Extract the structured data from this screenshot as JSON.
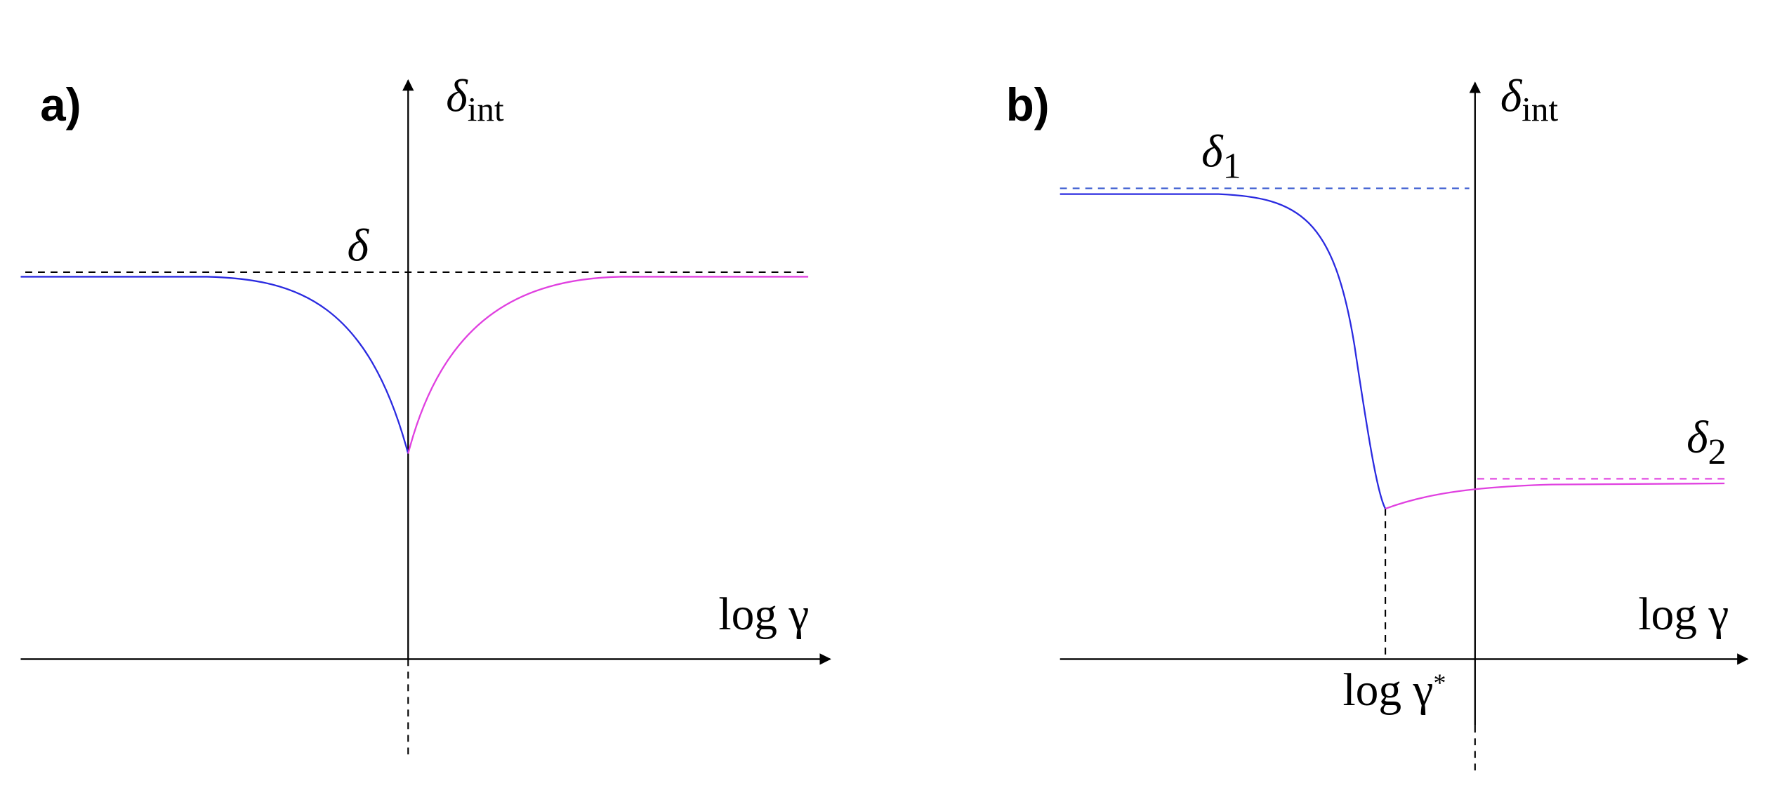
{
  "panels": [
    {
      "label": "a)",
      "y_axis": {
        "symbol": "δ",
        "subscript": "int"
      },
      "x_axis": "log γ",
      "level": "δ"
    },
    {
      "label": "b)",
      "y_axis": {
        "symbol": "δ",
        "subscript": "int"
      },
      "x_axis": "log γ",
      "level_left": {
        "symbol": "δ",
        "subscript": "1"
      },
      "level_right": {
        "symbol": "δ",
        "subscript": "2"
      },
      "threshold": {
        "text": "log γ",
        "superscript": "*"
      }
    }
  ]
}
